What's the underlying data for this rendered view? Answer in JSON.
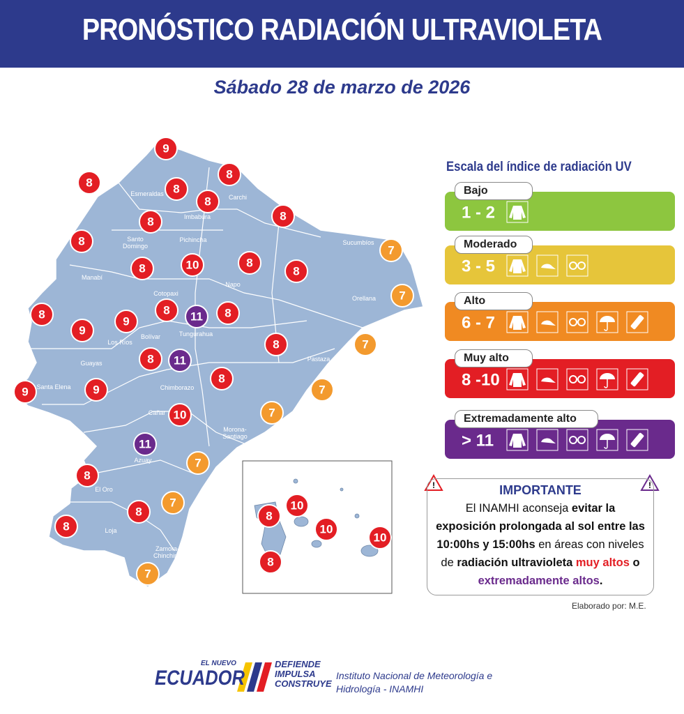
{
  "header": {
    "title": "PRONÓSTICO RADIACIÓN ULTRAVIOLETA",
    "date": "Sábado 28 de marzo de 2026"
  },
  "map": {
    "provinces": [
      "Esmeraldas",
      "Carchi",
      "Imbabura",
      "Santo Domingo",
      "Pichincha",
      "Sucumbíos",
      "Manabí",
      "Cotopaxi",
      "Napo",
      "Orellana",
      "Tungurahua",
      "Bolívar",
      "Los Ríos",
      "Guayas",
      "Santa Elena",
      "Pastaza",
      "Chimborazo",
      "Cañar",
      "Morona-Santiago",
      "Azuay",
      "El Oro",
      "Loja",
      "Zamora-Chinchipe"
    ],
    "markers": [
      {
        "value": 9,
        "color": "#e31e24"
      },
      {
        "value": 8,
        "color": "#e31e24"
      },
      {
        "value": 8,
        "color": "#e31e24"
      },
      {
        "value": 8,
        "color": "#e31e24"
      },
      {
        "value": 8,
        "color": "#e31e24"
      },
      {
        "value": 8,
        "color": "#e31e24"
      },
      {
        "value": 8,
        "color": "#e31e24"
      },
      {
        "value": 8,
        "color": "#e31e24"
      },
      {
        "value": 7,
        "color": "#f39a2e"
      },
      {
        "value": 8,
        "color": "#e31e24"
      },
      {
        "value": 10,
        "color": "#e31e24"
      },
      {
        "value": 8,
        "color": "#e31e24"
      },
      {
        "value": 8,
        "color": "#e31e24"
      },
      {
        "value": 7,
        "color": "#f39a2e"
      },
      {
        "value": 8,
        "color": "#e31e24"
      },
      {
        "value": 8,
        "color": "#e31e24"
      },
      {
        "value": 11,
        "color": "#6a2a8c"
      },
      {
        "value": 8,
        "color": "#e31e24"
      },
      {
        "value": 9,
        "color": "#e31e24"
      },
      {
        "value": 9,
        "color": "#e31e24"
      },
      {
        "value": 8,
        "color": "#e31e24"
      },
      {
        "value": 7,
        "color": "#f39a2e"
      },
      {
        "value": 8,
        "color": "#e31e24"
      },
      {
        "value": 11,
        "color": "#6a2a8c"
      },
      {
        "value": 8,
        "color": "#e31e24"
      },
      {
        "value": 9,
        "color": "#e31e24"
      },
      {
        "value": 9,
        "color": "#e31e24"
      },
      {
        "value": 7,
        "color": "#f39a2e"
      },
      {
        "value": 10,
        "color": "#e31e24"
      },
      {
        "value": 7,
        "color": "#f39a2e"
      },
      {
        "value": 11,
        "color": "#6a2a8c"
      },
      {
        "value": 7,
        "color": "#f39a2e"
      },
      {
        "value": 8,
        "color": "#e31e24"
      },
      {
        "value": 7,
        "color": "#f39a2e"
      },
      {
        "value": 8,
        "color": "#e31e24"
      },
      {
        "value": 8,
        "color": "#e31e24"
      },
      {
        "value": 7,
        "color": "#f39a2e"
      },
      {
        "value": 10,
        "color": "#e31e24"
      },
      {
        "value": 8,
        "color": "#e31e24"
      },
      {
        "value": 10,
        "color": "#e31e24"
      },
      {
        "value": 10,
        "color": "#e31e24"
      },
      {
        "value": 8,
        "color": "#e31e24"
      }
    ]
  },
  "scale": {
    "title": "Escala del índice de radiación UV",
    "levels": [
      {
        "name": "Bajo",
        "range": "1 - 2",
        "color": "#8dc63f"
      },
      {
        "name": "Moderado",
        "range": "3 - 5",
        "color": "#e6c53a"
      },
      {
        "name": "Alto",
        "range": "6 - 7",
        "color": "#f08a22"
      },
      {
        "name": "Muy alto",
        "range": "8 -10",
        "color": "#e31e24"
      },
      {
        "name": "Extremadamente alto",
        "range": "> 11",
        "color": "#6a2a8c"
      }
    ]
  },
  "notice": {
    "title": "IMPORTANTE",
    "body": [
      "El INAMHI aconseja ",
      "evitar la",
      "exposición prolongada al sol entre las",
      "10:00hs y 15:00hs",
      " en áreas con niveles",
      "de ",
      "radiación ultravioleta ",
      "muy altos",
      " o",
      "extremadamente altos",
      "."
    ]
  },
  "credit": "Elaborado por: M.E.",
  "footer": {
    "logo": [
      "EL NUEVO",
      "ECUADOR",
      "DEFIENDE",
      "IMPULSA",
      "CONSTRUYE"
    ],
    "institution": [
      "Instituto Nacional de Meteorología e",
      "Hidrología - INAMHI"
    ]
  }
}
